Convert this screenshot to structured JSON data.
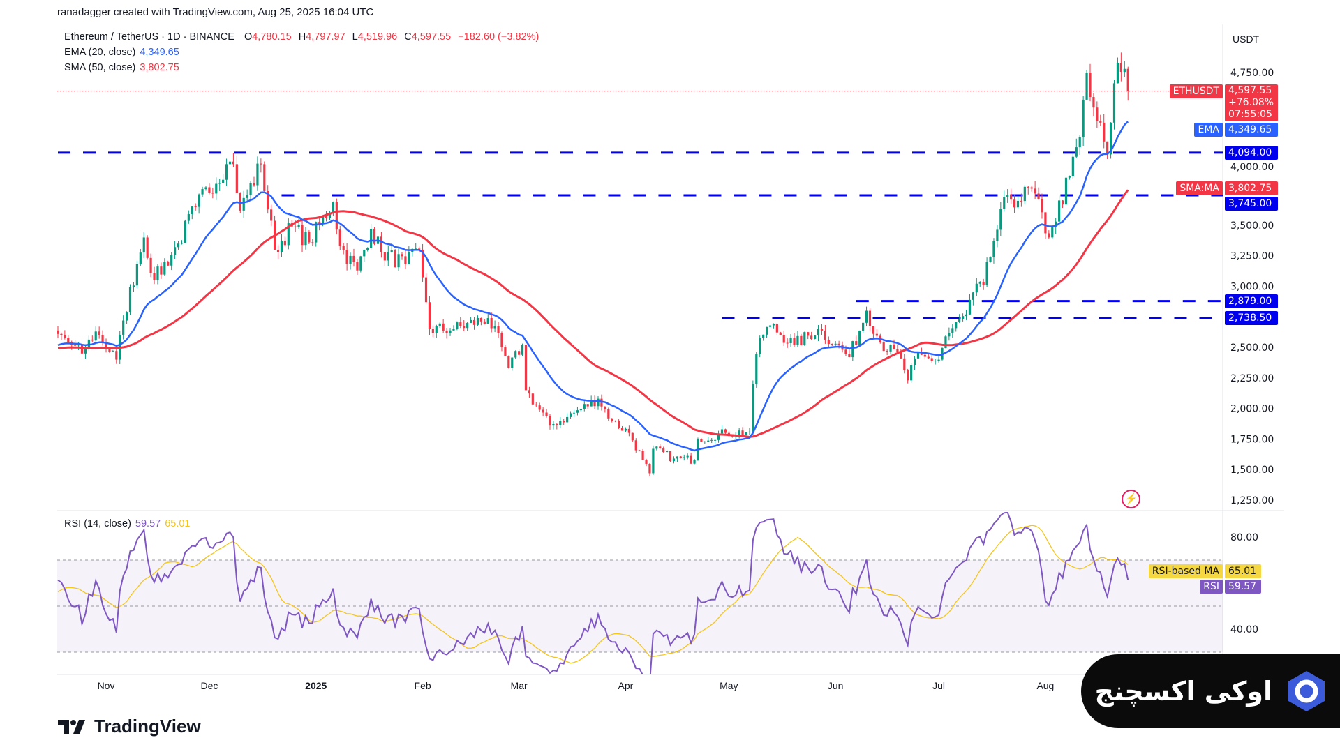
{
  "credit": "ranadagger created with TradingView.com, Aug 25, 2025 16:04 UTC",
  "legend": {
    "symbol": "Ethereum / TetherUS · 1D · BINANCE",
    "o_label": "O",
    "open": "4,780.15",
    "h_label": "H",
    "high": "4,797.97",
    "l_label": "L",
    "low": "4,519.96",
    "c_label": "C",
    "close": "4,597.55",
    "change": "−182.60 (−3.82%)",
    "ema_label": "EMA (20, close)",
    "ema_value": "4,349.65",
    "sma_label": "SMA (50, close)",
    "sma_value": "3,802.75",
    "rsi_label": "RSI (14, close)",
    "rsi_value": "59.57",
    "rsi_ma_value": "65.01"
  },
  "price_axis": {
    "currency": "USDT",
    "ticks": [
      "4,750.00",
      "4,000.00",
      "3,500.00",
      "3,250.00",
      "3,000.00",
      "2,500.00",
      "2,250.00",
      "2,000.00",
      "1,750.00",
      "1,500.00",
      "1,250.00"
    ],
    "tick_values": [
      4750,
      4000,
      3500,
      3250,
      3000,
      2500,
      2250,
      2000,
      1750,
      1500,
      1250
    ]
  },
  "tags": [
    {
      "name": "ethusdt",
      "label": "ETHUSDT",
      "value": 4597.55,
      "text": "4,597.55",
      "extra": [
        "+76.08%",
        "07:55:05"
      ],
      "color": "#f23645"
    },
    {
      "name": "ema",
      "label": "EMA",
      "value": 4349.65,
      "text": "4,349.65",
      "color": "#2962ff"
    },
    {
      "name": "level-4094",
      "label": "",
      "value": 4094,
      "text": "4,094.00",
      "color": "#0000ee"
    },
    {
      "name": "sma",
      "label": "SMA:MA",
      "value": 3802.75,
      "text": "3,802.75",
      "color": "#f23645"
    },
    {
      "name": "level-3745",
      "label": "",
      "value": 3745,
      "text": "3,745.00",
      "color": "#0000ee"
    },
    {
      "name": "level-2879",
      "label": "",
      "value": 2879,
      "text": "2,879.00",
      "color": "#0000ee"
    },
    {
      "name": "level-2738",
      "label": "",
      "value": 2738.5,
      "text": "2,738.50",
      "color": "#0000ee"
    }
  ],
  "rsi_axis": {
    "ticks": [
      "80.00",
      "40.00"
    ],
    "tick_values": [
      80,
      40
    ],
    "tags": [
      {
        "name": "rsi-ma",
        "label": "RSI-based MA",
        "value": 65.01,
        "text": "65.01",
        "color": "#f5d742",
        "fg": "#131722"
      },
      {
        "name": "rsi",
        "label": "RSI",
        "value": 59.57,
        "text": "59.57",
        "color": "#7e57c2",
        "fg": "#fff"
      }
    ]
  },
  "time_axis": [
    {
      "label": "Nov",
      "day": 14
    },
    {
      "label": "Dec",
      "day": 44
    },
    {
      "label": "2025",
      "day": 75
    },
    {
      "label": "Feb",
      "day": 106
    },
    {
      "label": "Mar",
      "day": 134
    },
    {
      "label": "Apr",
      "day": 165
    },
    {
      "label": "May",
      "day": 195
    },
    {
      "label": "Jun",
      "day": 226
    },
    {
      "label": "Jul",
      "day": 256
    },
    {
      "label": "Aug",
      "day": 287
    }
  ],
  "chart_data": {
    "type": "candlestick",
    "title": "Ethereum / TetherUS · 1D · BINANCE",
    "start_date": "2024-10-18",
    "ylim": [
      1250,
      4950
    ],
    "colors": {
      "up": "#089981",
      "down": "#f23645",
      "ema": "#2962ff",
      "sma": "#f23645",
      "levels": "#0000ee",
      "rsi": "#7e57c2",
      "rsi_ma": "#f5c518"
    },
    "last_candle": {
      "open": 4780.15,
      "high": 4797.97,
      "low": 4519.96,
      "close": 4597.55
    },
    "horizontal_levels": [
      {
        "value": 4094,
        "from_day": 0
      },
      {
        "value": 3745,
        "from_day": 65
      },
      {
        "value": 2879,
        "from_day": 232
      },
      {
        "value": 2738.5,
        "from_day": 193
      }
    ],
    "close_keypoints_day_price": [
      [
        -70,
        2300
      ],
      [
        -40,
        2550
      ],
      [
        -15,
        2400
      ],
      [
        0,
        2610
      ],
      [
        7,
        2450
      ],
      [
        11,
        2630
      ],
      [
        17,
        2400
      ],
      [
        19,
        2720
      ],
      [
        23,
        3180
      ],
      [
        25,
        3400
      ],
      [
        28,
        3050
      ],
      [
        35,
        3350
      ],
      [
        40,
        3650
      ],
      [
        49,
        4000
      ],
      [
        51,
        4000
      ],
      [
        53,
        3620
      ],
      [
        59,
        4000
      ],
      [
        63,
        3300
      ],
      [
        68,
        3490
      ],
      [
        73,
        3360
      ],
      [
        80,
        3690
      ],
      [
        82,
        3330
      ],
      [
        87,
        3130
      ],
      [
        91,
        3470
      ],
      [
        94,
        3280
      ],
      [
        101,
        3180
      ],
      [
        105,
        3300
      ],
      [
        107,
        2870
      ],
      [
        108,
        2650
      ],
      [
        115,
        2650
      ],
      [
        125,
        2740
      ],
      [
        129,
        2500
      ],
      [
        131,
        2330
      ],
      [
        135,
        2520
      ],
      [
        136,
        2150
      ],
      [
        143,
        1860
      ],
      [
        148,
        1930
      ],
      [
        157,
        2080
      ],
      [
        161,
        1900
      ],
      [
        166,
        1800
      ],
      [
        170,
        1580
      ],
      [
        172,
        1470
      ],
      [
        173,
        1670
      ],
      [
        179,
        1590
      ],
      [
        185,
        1580
      ],
      [
        186,
        1750
      ],
      [
        194,
        1800
      ],
      [
        201,
        1810
      ],
      [
        202,
        2200
      ],
      [
        204,
        2580
      ],
      [
        207,
        2680
      ],
      [
        214,
        2520
      ],
      [
        221,
        2650
      ],
      [
        226,
        2530
      ],
      [
        230,
        2420
      ],
      [
        235,
        2800
      ],
      [
        239,
        2540
      ],
      [
        245,
        2410
      ],
      [
        247,
        2230
      ],
      [
        249,
        2410
      ],
      [
        256,
        2400
      ],
      [
        258,
        2590
      ],
      [
        264,
        2770
      ],
      [
        266,
        2950
      ],
      [
        269,
        3010
      ],
      [
        272,
        3370
      ],
      [
        276,
        3750
      ],
      [
        279,
        3700
      ],
      [
        283,
        3800
      ],
      [
        288,
        3400
      ],
      [
        289,
        3490
      ],
      [
        294,
        3900
      ],
      [
        297,
        4220
      ],
      [
        299,
        4750
      ],
      [
        300,
        4550
      ],
      [
        305,
        4080
      ],
      [
        306,
        4340
      ],
      [
        308,
        4830
      ],
      [
        310,
        4780
      ],
      [
        311,
        4597.55
      ]
    ],
    "rsi": {
      "period": 14,
      "ma_period": 14,
      "upper": 70,
      "lower": 30
    }
  },
  "branding": {
    "tradingview": "TradingView",
    "overlay_text": "اوکی اکسچنج"
  }
}
